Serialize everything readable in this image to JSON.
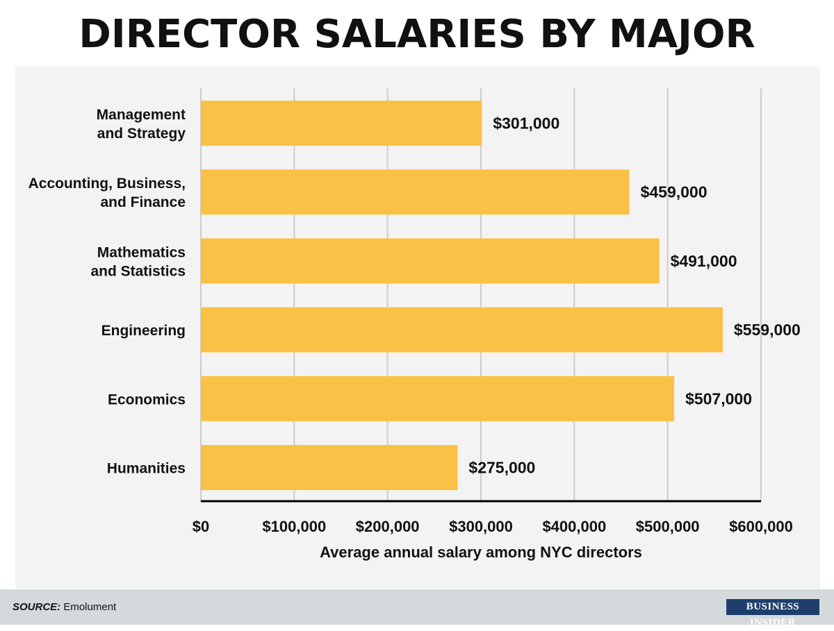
{
  "title": "DIRECTOR SALARIES BY MAJOR",
  "source_label": "SOURCE:",
  "source_value": "Emolument",
  "brand": "BUSINESS INSIDER",
  "colors": {
    "bar": "#f9c145",
    "grid": "#cccccc",
    "axis": "#000000",
    "text": "#111111",
    "panel": "#f3f3f3"
  },
  "chart_data": {
    "type": "bar",
    "orientation": "horizontal",
    "categories": [
      [
        "Management",
        "and Strategy"
      ],
      [
        "Accounting, Business,",
        "and Finance"
      ],
      [
        "Mathematics",
        "and Statistics"
      ],
      [
        "Engineering"
      ],
      [
        "Economics"
      ],
      [
        "Humanities"
      ]
    ],
    "values": [
      301000,
      459000,
      491000,
      559000,
      507000,
      275000
    ],
    "data_labels": [
      "$301,000",
      "$459,000",
      "$491,000",
      "$559,000",
      "$507,000",
      "$275,000"
    ],
    "xlim": [
      0,
      600000
    ],
    "x_ticks": [
      0,
      100000,
      200000,
      300000,
      400000,
      500000,
      600000
    ],
    "x_tick_labels": [
      "$0",
      "$100,000",
      "$200,000",
      "$300,000",
      "$400,000",
      "$500,000",
      "$600,000"
    ],
    "xlabel": "Average annual salary among NYC directors",
    "grid": "vertical"
  }
}
